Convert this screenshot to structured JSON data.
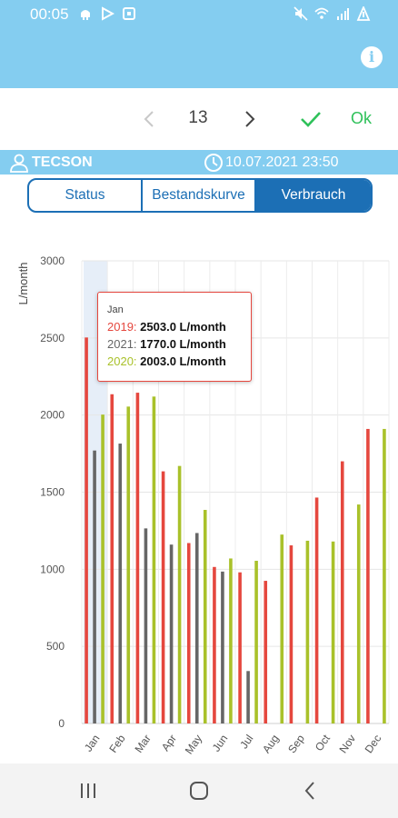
{
  "status_bar": {
    "time": "00:05",
    "left_icons": [
      "android-icon",
      "play-icon",
      "gallery-icon"
    ],
    "right_icons": [
      "mute-icon",
      "wifi-icon",
      "signal-icon",
      "battery-icon"
    ]
  },
  "app_bar": {
    "info_icon": "info-icon",
    "info_glyph": "i"
  },
  "pager": {
    "value": "13",
    "ok_label": "Ok"
  },
  "info_bar": {
    "user": "TECSON",
    "datetime": "10.07.2021 23:50"
  },
  "tabs": [
    {
      "label": "Status",
      "selected": false
    },
    {
      "label": "Bestandskurve",
      "selected": false
    },
    {
      "label": "Verbrauch",
      "selected": true
    }
  ],
  "tooltip": {
    "month": "Jan",
    "rows": [
      {
        "year": "2019",
        "sep": ": ",
        "value": "2503.0 L/month",
        "color": "#e5473e"
      },
      {
        "year": "2021",
        "sep": ": ",
        "value": "1770.0 L/month",
        "color": "#666666"
      },
      {
        "year": "2020",
        "sep": ": ",
        "value": "2003.0 L/month",
        "color": "#a9c12a"
      }
    ]
  },
  "colors": {
    "accent": "#84cdf0",
    "tab_blue": "#1c6fb5",
    "ok_green": "#2fc15a"
  },
  "chart_data": {
    "type": "bar",
    "ylabel": "L/month",
    "ylim": [
      0,
      3000
    ],
    "yticks": [
      0,
      500,
      1000,
      1500,
      2000,
      2500,
      3000
    ],
    "grid": true,
    "categories": [
      "Jan",
      "Feb",
      "Mar",
      "Apr",
      "May",
      "Jun",
      "Jul",
      "Aug",
      "Sep",
      "Oct",
      "Nov",
      "Dec"
    ],
    "highlighted_category": "Jan",
    "series": [
      {
        "color": "#e5473e",
        "values": [
          2503,
          2135,
          2145,
          1635,
          1170,
          1015,
          980,
          925,
          1155,
          1465,
          1700,
          1910
        ]
      },
      {
        "color": "#666666",
        "values": [
          1770,
          1815,
          1265,
          1160,
          1235,
          985,
          340,
          null,
          null,
          null,
          null,
          null
        ]
      },
      {
        "color": "#a9c12a",
        "values": [
          2003,
          2055,
          2120,
          1670,
          1385,
          1070,
          1055,
          1225,
          1185,
          1180,
          1420,
          1910
        ]
      }
    ]
  }
}
